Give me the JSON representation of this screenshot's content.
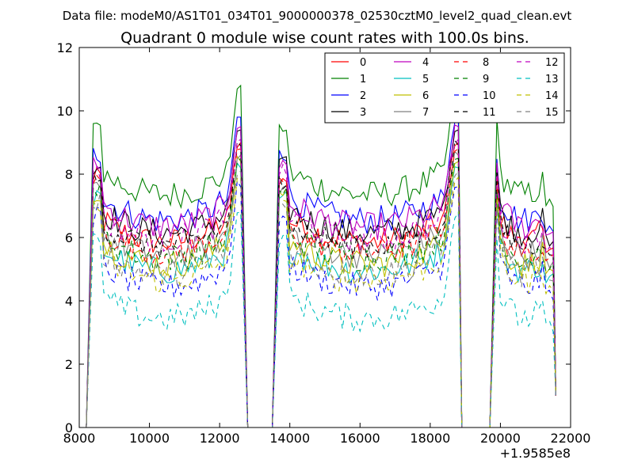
{
  "chart_data": {
    "type": "line",
    "subtitle": "Data file: modeM0/AS1T01_034T01_9000000378_02530cztM0_level2_quad_clean.evt",
    "title": "Quadrant 0 module wise count rates with 100.0s bins.",
    "xlabel": "",
    "ylabel": "",
    "x_offset_label": "+1.9585e8",
    "xlim": [
      8000,
      22000
    ],
    "ylim": [
      0,
      12
    ],
    "x_ticks": [
      8000,
      10000,
      12000,
      14000,
      16000,
      18000,
      20000,
      22000
    ],
    "y_ticks": [
      0,
      2,
      4,
      6,
      8,
      10,
      12
    ],
    "x_tick_labels": [
      "8000",
      "10000",
      "12000",
      "14000",
      "16000",
      "18000",
      "20000",
      "22000"
    ],
    "y_tick_labels": [
      "0",
      "2",
      "4",
      "6",
      "8",
      "10",
      "12"
    ],
    "grid": false,
    "legend_position": "top-right",
    "legend_columns": 4,
    "segments": [
      {
        "start": 8400,
        "end": 12500,
        "ramp_to": 12800
      },
      {
        "start": 13700,
        "end": 18700,
        "ramp_to": 18900
      },
      {
        "start": 19900,
        "end": 21500,
        "ramp_to": 21580
      }
    ],
    "series": [
      {
        "name": "0",
        "color": "#ff0000",
        "dash": "solid",
        "base": 6.3,
        "peak": 9.0
      },
      {
        "name": "1",
        "color": "#008000",
        "dash": "solid",
        "base": 7.8,
        "peak": 10.8
      },
      {
        "name": "2",
        "color": "#0000ff",
        "dash": "solid",
        "base": 7.0,
        "peak": 9.8
      },
      {
        "name": "3",
        "color": "#000000",
        "dash": "solid",
        "base": 6.6,
        "peak": 9.4
      },
      {
        "name": "4",
        "color": "#bf00bf",
        "dash": "solid",
        "base": 6.8,
        "peak": 9.5
      },
      {
        "name": "5",
        "color": "#00bfbf",
        "dash": "solid",
        "base": 5.4,
        "peak": 8.2
      },
      {
        "name": "6",
        "color": "#bfbf00",
        "dash": "solid",
        "base": 5.6,
        "peak": 8.4
      },
      {
        "name": "7",
        "color": "#808080",
        "dash": "solid",
        "base": 5.9,
        "peak": 8.6
      },
      {
        "name": "8",
        "color": "#ff0000",
        "dash": "dashed",
        "base": 6.0,
        "peak": 8.8
      },
      {
        "name": "9",
        "color": "#008000",
        "dash": "dashed",
        "base": 5.8,
        "peak": 8.5
      },
      {
        "name": "10",
        "color": "#0000ff",
        "dash": "dashed",
        "base": 4.9,
        "peak": 7.6
      },
      {
        "name": "11",
        "color": "#000000",
        "dash": "dashed",
        "base": 6.2,
        "peak": 8.9
      },
      {
        "name": "12",
        "color": "#bf00bf",
        "dash": "dashed",
        "base": 6.4,
        "peak": 9.1
      },
      {
        "name": "13",
        "color": "#00bfbf",
        "dash": "dashed",
        "base": 3.9,
        "peak": 6.8
      },
      {
        "name": "14",
        "color": "#bfbf00",
        "dash": "dashed",
        "base": 5.1,
        "peak": 7.9
      },
      {
        "name": "15",
        "color": "#808080",
        "dash": "dashed",
        "base": 5.3,
        "peak": 8.1
      }
    ]
  }
}
